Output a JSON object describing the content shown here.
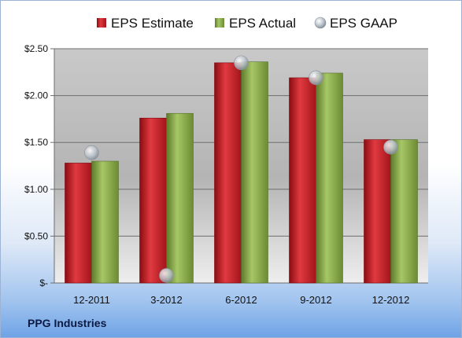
{
  "company": "PPG Industries",
  "chart_data": {
    "type": "bar",
    "categories": [
      "12-2011",
      "3-2012",
      "6-2012",
      "9-2012",
      "12-2012"
    ],
    "series": [
      {
        "name": "EPS Estimate",
        "type": "bar",
        "color": "#c8202a",
        "values": [
          1.28,
          1.76,
          2.35,
          2.19,
          1.53
        ]
      },
      {
        "name": "EPS Actual",
        "type": "bar",
        "color": "#8cac4a",
        "values": [
          1.3,
          1.81,
          2.36,
          2.24,
          1.53
        ]
      },
      {
        "name": "EPS GAAP",
        "type": "scatter",
        "color": "#b9c2cc",
        "values": [
          1.39,
          0.08,
          2.35,
          2.19,
          1.45
        ]
      }
    ],
    "ylim": [
      0,
      2.5
    ],
    "yticks": [
      0,
      0.5,
      1.0,
      1.5,
      2.0,
      2.5
    ],
    "ytick_labels": [
      "$-",
      "$0.50",
      "$1.00",
      "$1.50",
      "$2.00",
      "$2.50"
    ],
    "grid": true,
    "legend_position": "top"
  }
}
